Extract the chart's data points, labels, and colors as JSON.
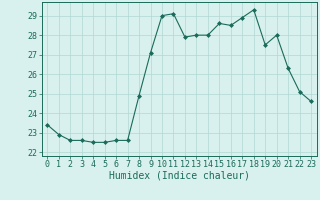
{
  "x": [
    0,
    1,
    2,
    3,
    4,
    5,
    6,
    7,
    8,
    9,
    10,
    11,
    12,
    13,
    14,
    15,
    16,
    17,
    18,
    19,
    20,
    21,
    22,
    23
  ],
  "y": [
    23.4,
    22.9,
    22.6,
    22.6,
    22.5,
    22.5,
    22.6,
    22.6,
    24.9,
    27.1,
    29.0,
    29.1,
    27.9,
    28.0,
    28.0,
    28.6,
    28.5,
    28.9,
    29.3,
    27.5,
    28.0,
    26.3,
    25.1,
    24.6
  ],
  "line_color": "#1a6b5a",
  "marker": "D",
  "marker_size": 2.0,
  "bg_color": "#d8f0ee",
  "grid_color": "#b0d8d4",
  "xlabel": "Humidex (Indice chaleur)",
  "xlim": [
    -0.5,
    23.5
  ],
  "ylim": [
    21.8,
    29.7
  ],
  "yticks": [
    22,
    23,
    24,
    25,
    26,
    27,
    28,
    29
  ],
  "xticks": [
    0,
    1,
    2,
    3,
    4,
    5,
    6,
    7,
    8,
    9,
    10,
    11,
    12,
    13,
    14,
    15,
    16,
    17,
    18,
    19,
    20,
    21,
    22,
    23
  ],
  "tick_color": "#1a6b5a",
  "label_color": "#1a6b5a",
  "font_size": 6.0,
  "xlabel_font_size": 7.0
}
